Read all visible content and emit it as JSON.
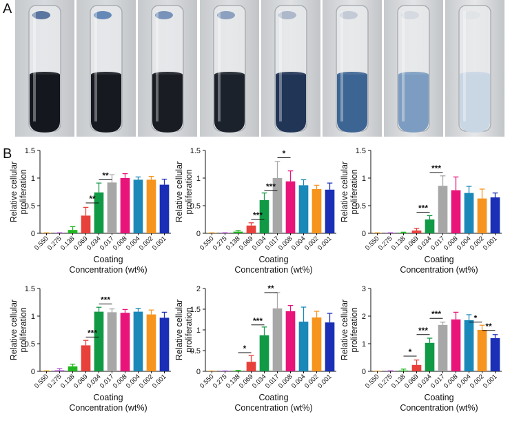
{
  "panel_labels": {
    "a": "A",
    "b": "B"
  },
  "photos": {
    "tubes": [
      {
        "liquid": "#14171d",
        "stain": "#2b4f86",
        "air": "#d7dade"
      },
      {
        "liquid": "#161a20",
        "stain": "#3a6aa5",
        "air": "#d8dbde"
      },
      {
        "liquid": "#191d23",
        "stain": "#5476a8",
        "air": "#dadcdf"
      },
      {
        "liquid": "#1c222b",
        "stain": "#6f88b0",
        "air": "#dcdee0"
      },
      {
        "liquid": "#213556",
        "stain": "#9aa8bf",
        "air": "#dfe1e3"
      },
      {
        "liquid": "#3d6594",
        "stain": "#b7c0cf",
        "air": "#e2e3e5"
      },
      {
        "liquid": "#7c9dc1",
        "stain": "#cfd4dc",
        "air": "#e3e4e6"
      },
      {
        "liquid": "#c9d6e4",
        "stain": "#dfe2e6",
        "air": "#e6e7e9"
      }
    ]
  },
  "bar_colors": [
    "#e8a63a",
    "#b25ad0",
    "#1fb71f",
    "#e8403a",
    "#119a46",
    "#a7a7a7",
    "#e8147a",
    "#1a88b8",
    "#f6941e",
    "#1a2fb6"
  ],
  "chart_data": [
    {
      "type": "bar",
      "categories": [
        "0.550",
        "0.275",
        "0.138",
        "0.069",
        "0.034",
        "0.017",
        "0.008",
        "0.004",
        "0.002",
        "0.001"
      ],
      "values": [
        0.0,
        0.0,
        0.06,
        0.32,
        0.74,
        0.92,
        1.0,
        0.97,
        0.97,
        0.88
      ],
      "errors": [
        0.01,
        0.01,
        0.06,
        0.15,
        0.17,
        0.14,
        0.08,
        0.05,
        0.06,
        0.1
      ],
      "ylim": [
        0,
        1.5
      ],
      "yticks": [
        "0",
        "0.5",
        "1",
        "1.5"
      ],
      "ylabel": [
        "Relative cellular",
        "proliferation"
      ],
      "xlabel": [
        "Coating",
        "Concentration (wt%)"
      ],
      "annotations": [
        {
          "from": 3,
          "to": 4,
          "y": 0.55,
          "label": "**"
        },
        {
          "from": 4,
          "to": 5,
          "y": 0.97,
          "label": "**"
        }
      ]
    },
    {
      "type": "bar",
      "categories": [
        "0.550",
        "0.275",
        "0.138",
        "0.069",
        "0.034",
        "0.017",
        "0.008",
        "0.004",
        "0.002",
        "0.001"
      ],
      "values": [
        0.0,
        0.0,
        0.03,
        0.14,
        0.6,
        1.0,
        0.94,
        0.87,
        0.8,
        0.79
      ],
      "errors": [
        0.01,
        0.01,
        0.02,
        0.05,
        0.13,
        0.3,
        0.19,
        0.1,
        0.07,
        0.12
      ],
      "ylim": [
        0,
        1.5
      ],
      "yticks": [
        "0",
        "0.5",
        "1",
        "1.5"
      ],
      "ylabel": [
        "Relative cellular",
        "proliferation"
      ],
      "xlabel": [
        "Coating",
        "Concentration (wt%)"
      ],
      "annotations": [
        {
          "from": 3,
          "to": 4,
          "y": 0.25,
          "label": "***"
        },
        {
          "from": 4,
          "to": 5,
          "y": 0.77,
          "label": "***"
        },
        {
          "from": 5,
          "to": 6,
          "y": 1.37,
          "label": "*"
        }
      ]
    },
    {
      "type": "bar",
      "categories": [
        "0.550",
        "0.275",
        "0.138",
        "0.069",
        "0.034",
        "0.017",
        "0.008",
        "0.004",
        "0.002",
        "0.001"
      ],
      "values": [
        0.0,
        0.0,
        0.0,
        0.05,
        0.25,
        0.86,
        0.78,
        0.73,
        0.63,
        0.65
      ],
      "errors": [
        0.01,
        0.01,
        0.02,
        0.04,
        0.07,
        0.18,
        0.24,
        0.12,
        0.17,
        0.08
      ],
      "ylim": [
        0,
        1.5
      ],
      "yticks": [
        "0",
        "0.5",
        "1",
        "1.5"
      ],
      "ylabel": [
        "Relative cellular",
        "proliferation"
      ],
      "xlabel": [
        "Coating",
        "Concentration (wt%)"
      ],
      "annotations": [
        {
          "from": 3,
          "to": 4,
          "y": 0.38,
          "label": "***"
        },
        {
          "from": 4,
          "to": 5,
          "y": 1.1,
          "label": "***"
        }
      ]
    },
    {
      "type": "bar",
      "categories": [
        "0.550",
        "0.275",
        "0.138",
        "0.069",
        "0.034",
        "0.017",
        "0.008",
        "0.004",
        "0.002",
        "0.001"
      ],
      "values": [
        0.0,
        0.02,
        0.09,
        0.47,
        1.08,
        1.07,
        1.06,
        1.08,
        1.03,
        0.97
      ],
      "errors": [
        0.01,
        0.03,
        0.04,
        0.09,
        0.08,
        0.06,
        0.06,
        0.06,
        0.08,
        0.1
      ],
      "ylim": [
        0,
        1.5
      ],
      "yticks": [
        "0",
        "0.5",
        "1",
        "1.5"
      ],
      "ylabel": [
        "Relative cellular",
        "proliferation"
      ],
      "xlabel": [
        "Coating",
        "Concentration (wt%)"
      ],
      "annotations": [
        {
          "from": 3,
          "to": 4,
          "y": 0.62,
          "label": "***"
        },
        {
          "from": 4,
          "to": 5,
          "y": 1.22,
          "label": "***"
        }
      ]
    },
    {
      "type": "bar",
      "categories": [
        "0.550",
        "0.275",
        "0.138",
        "0.069",
        "0.034",
        "0.017",
        "0.008",
        "0.004",
        "0.002",
        "0.001"
      ],
      "values": [
        0.0,
        0.0,
        0.0,
        0.23,
        0.87,
        1.52,
        1.45,
        1.2,
        1.3,
        1.18
      ],
      "errors": [
        0.01,
        0.01,
        0.02,
        0.15,
        0.2,
        0.38,
        0.14,
        0.35,
        0.15,
        0.22
      ],
      "ylim": [
        0,
        2
      ],
      "yticks": [
        "0",
        "0.5",
        "1",
        "1.5",
        "2"
      ],
      "ylabel": [
        "Relative cellular",
        "proliferation"
      ],
      "xlabel": [
        "Coating",
        "Concentration (wt%)"
      ],
      "annotations": [
        {
          "from": 2,
          "to": 3,
          "y": 0.45,
          "label": "*"
        },
        {
          "from": 3,
          "to": 4,
          "y": 1.12,
          "label": "***"
        },
        {
          "from": 4,
          "to": 5,
          "y": 1.9,
          "label": "**"
        }
      ]
    },
    {
      "type": "bar",
      "categories": [
        "0.550",
        "0.275",
        "0.138",
        "0.069",
        "0.034",
        "0.017",
        "0.008",
        "0.004",
        "0.002",
        "0.001"
      ],
      "values": [
        0.0,
        0.0,
        0.03,
        0.23,
        1.03,
        1.68,
        1.88,
        1.85,
        1.5,
        1.2
      ],
      "errors": [
        0.01,
        0.02,
        0.05,
        0.18,
        0.17,
        0.1,
        0.26,
        0.2,
        0.17,
        0.13
      ],
      "ylim": [
        0,
        3
      ],
      "yticks": [
        "0",
        "1",
        "2",
        "3"
      ],
      "ylabel": [
        "Relative cellular",
        "proliferation"
      ],
      "xlabel": [
        "Coating",
        "Concentration (wt%)"
      ],
      "annotations": [
        {
          "from": 2,
          "to": 3,
          "y": 0.55,
          "label": "*"
        },
        {
          "from": 3,
          "to": 4,
          "y": 1.33,
          "label": "***"
        },
        {
          "from": 4,
          "to": 5,
          "y": 1.92,
          "label": "***"
        },
        {
          "from": 7,
          "to": 8,
          "y": 1.78,
          "label": "*"
        },
        {
          "from": 8,
          "to": 9,
          "y": 1.48,
          "label": "**"
        }
      ]
    }
  ]
}
